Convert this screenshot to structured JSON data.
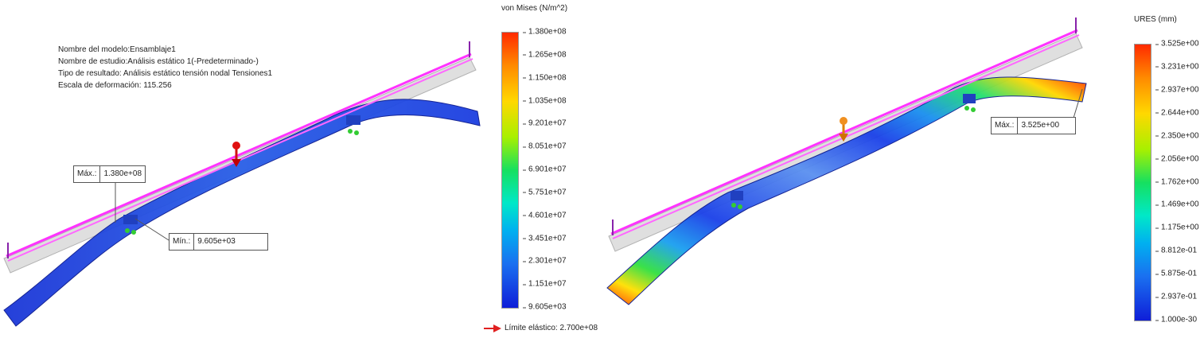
{
  "left": {
    "info": {
      "model": "Nombre del modelo:Ensamblaje1",
      "study": "Nombre de estudio:Análisis estático 1(-Predeterminado-)",
      "result": "Tipo de resultado: Análisis estático tensión nodal Tensiones1",
      "scale": "Escala de deformación: 115.256"
    },
    "probe_max": {
      "label": "Máx.:",
      "value": "1.380e+08"
    },
    "probe_min": {
      "label": "Mín.:",
      "value": "9.605e+03"
    },
    "legend": {
      "title": "von Mises (N/m^2)",
      "ticks": [
        "1.380e+08",
        "1.265e+08",
        "1.150e+08",
        "1.035e+08",
        "9.201e+07",
        "8.051e+07",
        "6.901e+07",
        "5.751e+07",
        "4.601e+07",
        "3.451e+07",
        "2.301e+07",
        "1.151e+07",
        "9.605e+03"
      ]
    },
    "yield": "Límite elástico: 2.700e+08"
  },
  "right": {
    "probe_max": {
      "label": "Máx.:",
      "value": "3.525e+00"
    },
    "legend": {
      "title": "URES (mm)",
      "ticks": [
        "3.525e+00",
        "3.231e+00",
        "2.937e+00",
        "2.644e+00",
        "2.350e+00",
        "2.056e+00",
        "1.762e+00",
        "1.469e+00",
        "1.175e+00",
        "8.812e-01",
        "5.875e-01",
        "2.937e-01",
        "1.000e-30"
      ]
    }
  },
  "colors": {
    "max": "#ff2a00",
    "high": "#ffd800",
    "mid": "#16e060",
    "low": "#1a40e8",
    "min": "#0f1ed8",
    "undeformed": "#ff33ff"
  }
}
